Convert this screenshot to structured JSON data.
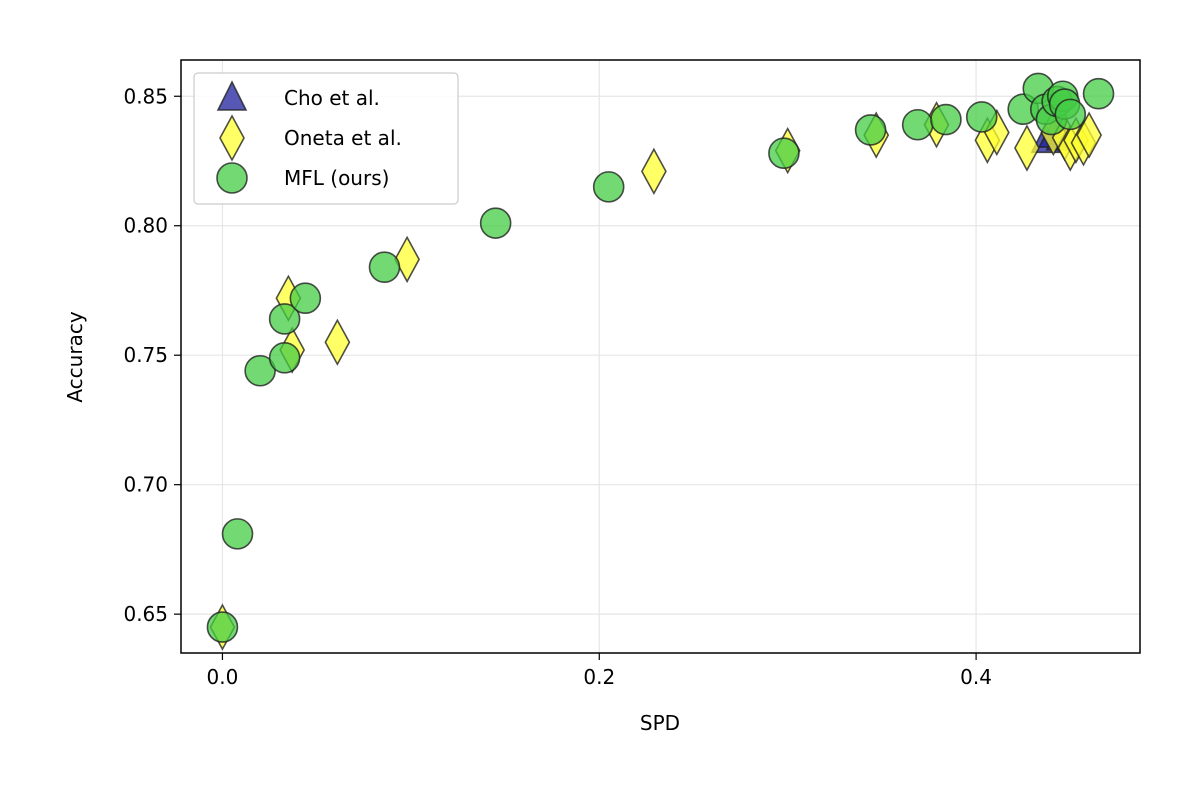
{
  "chart_data": {
    "type": "scatter",
    "xlabel": "SPD",
    "ylabel": "Accuracy",
    "xlim": [
      -0.022,
      0.487
    ],
    "ylim": [
      0.635,
      0.864
    ],
    "xticks": [
      0.0,
      0.2,
      0.4
    ],
    "xtick_labels": [
      "0.0",
      "0.2",
      "0.4"
    ],
    "yticks": [
      0.65,
      0.7,
      0.75,
      0.8,
      0.85
    ],
    "ytick_labels": [
      "0.65",
      "0.70",
      "0.75",
      "0.80",
      "0.85"
    ],
    "grid": true,
    "legend_position": "top-left",
    "series": [
      {
        "name": "Cho et al.",
        "marker": "triangle",
        "color": "#1f1f9e",
        "points": [
          {
            "x": 0.437,
            "y": 0.833
          },
          {
            "x": 0.441,
            "y": 0.835
          },
          {
            "x": 0.445,
            "y": 0.834
          }
        ]
      },
      {
        "name": "Oneta et al.",
        "marker": "diamond",
        "color": "#ffff33",
        "points": [
          {
            "x": 0.0,
            "y": 0.645
          },
          {
            "x": 0.035,
            "y": 0.772
          },
          {
            "x": 0.037,
            "y": 0.752
          },
          {
            "x": 0.061,
            "y": 0.755
          },
          {
            "x": 0.098,
            "y": 0.787
          },
          {
            "x": 0.229,
            "y": 0.821
          },
          {
            "x": 0.3,
            "y": 0.829
          },
          {
            "x": 0.347,
            "y": 0.835
          },
          {
            "x": 0.379,
            "y": 0.839
          },
          {
            "x": 0.406,
            "y": 0.833
          },
          {
            "x": 0.411,
            "y": 0.836
          },
          {
            "x": 0.427,
            "y": 0.83
          },
          {
            "x": 0.441,
            "y": 0.836
          },
          {
            "x": 0.447,
            "y": 0.834
          },
          {
            "x": 0.45,
            "y": 0.83
          },
          {
            "x": 0.453,
            "y": 0.833
          },
          {
            "x": 0.457,
            "y": 0.832
          },
          {
            "x": 0.46,
            "y": 0.835
          }
        ]
      },
      {
        "name": "MFL (ours)",
        "marker": "circle",
        "color": "#44cc44",
        "points": [
          {
            "x": 0.0,
            "y": 0.645
          },
          {
            "x": 0.008,
            "y": 0.681
          },
          {
            "x": 0.02,
            "y": 0.744
          },
          {
            "x": 0.033,
            "y": 0.749
          },
          {
            "x": 0.033,
            "y": 0.764
          },
          {
            "x": 0.044,
            "y": 0.772
          },
          {
            "x": 0.086,
            "y": 0.784
          },
          {
            "x": 0.145,
            "y": 0.801
          },
          {
            "x": 0.205,
            "y": 0.815
          },
          {
            "x": 0.298,
            "y": 0.828
          },
          {
            "x": 0.344,
            "y": 0.837
          },
          {
            "x": 0.369,
            "y": 0.839
          },
          {
            "x": 0.384,
            "y": 0.841
          },
          {
            "x": 0.403,
            "y": 0.842
          },
          {
            "x": 0.425,
            "y": 0.845
          },
          {
            "x": 0.433,
            "y": 0.853
          },
          {
            "x": 0.437,
            "y": 0.845
          },
          {
            "x": 0.44,
            "y": 0.841
          },
          {
            "x": 0.443,
            "y": 0.848
          },
          {
            "x": 0.446,
            "y": 0.85
          },
          {
            "x": 0.447,
            "y": 0.847
          },
          {
            "x": 0.45,
            "y": 0.843
          },
          {
            "x": 0.465,
            "y": 0.851
          }
        ]
      }
    ]
  }
}
